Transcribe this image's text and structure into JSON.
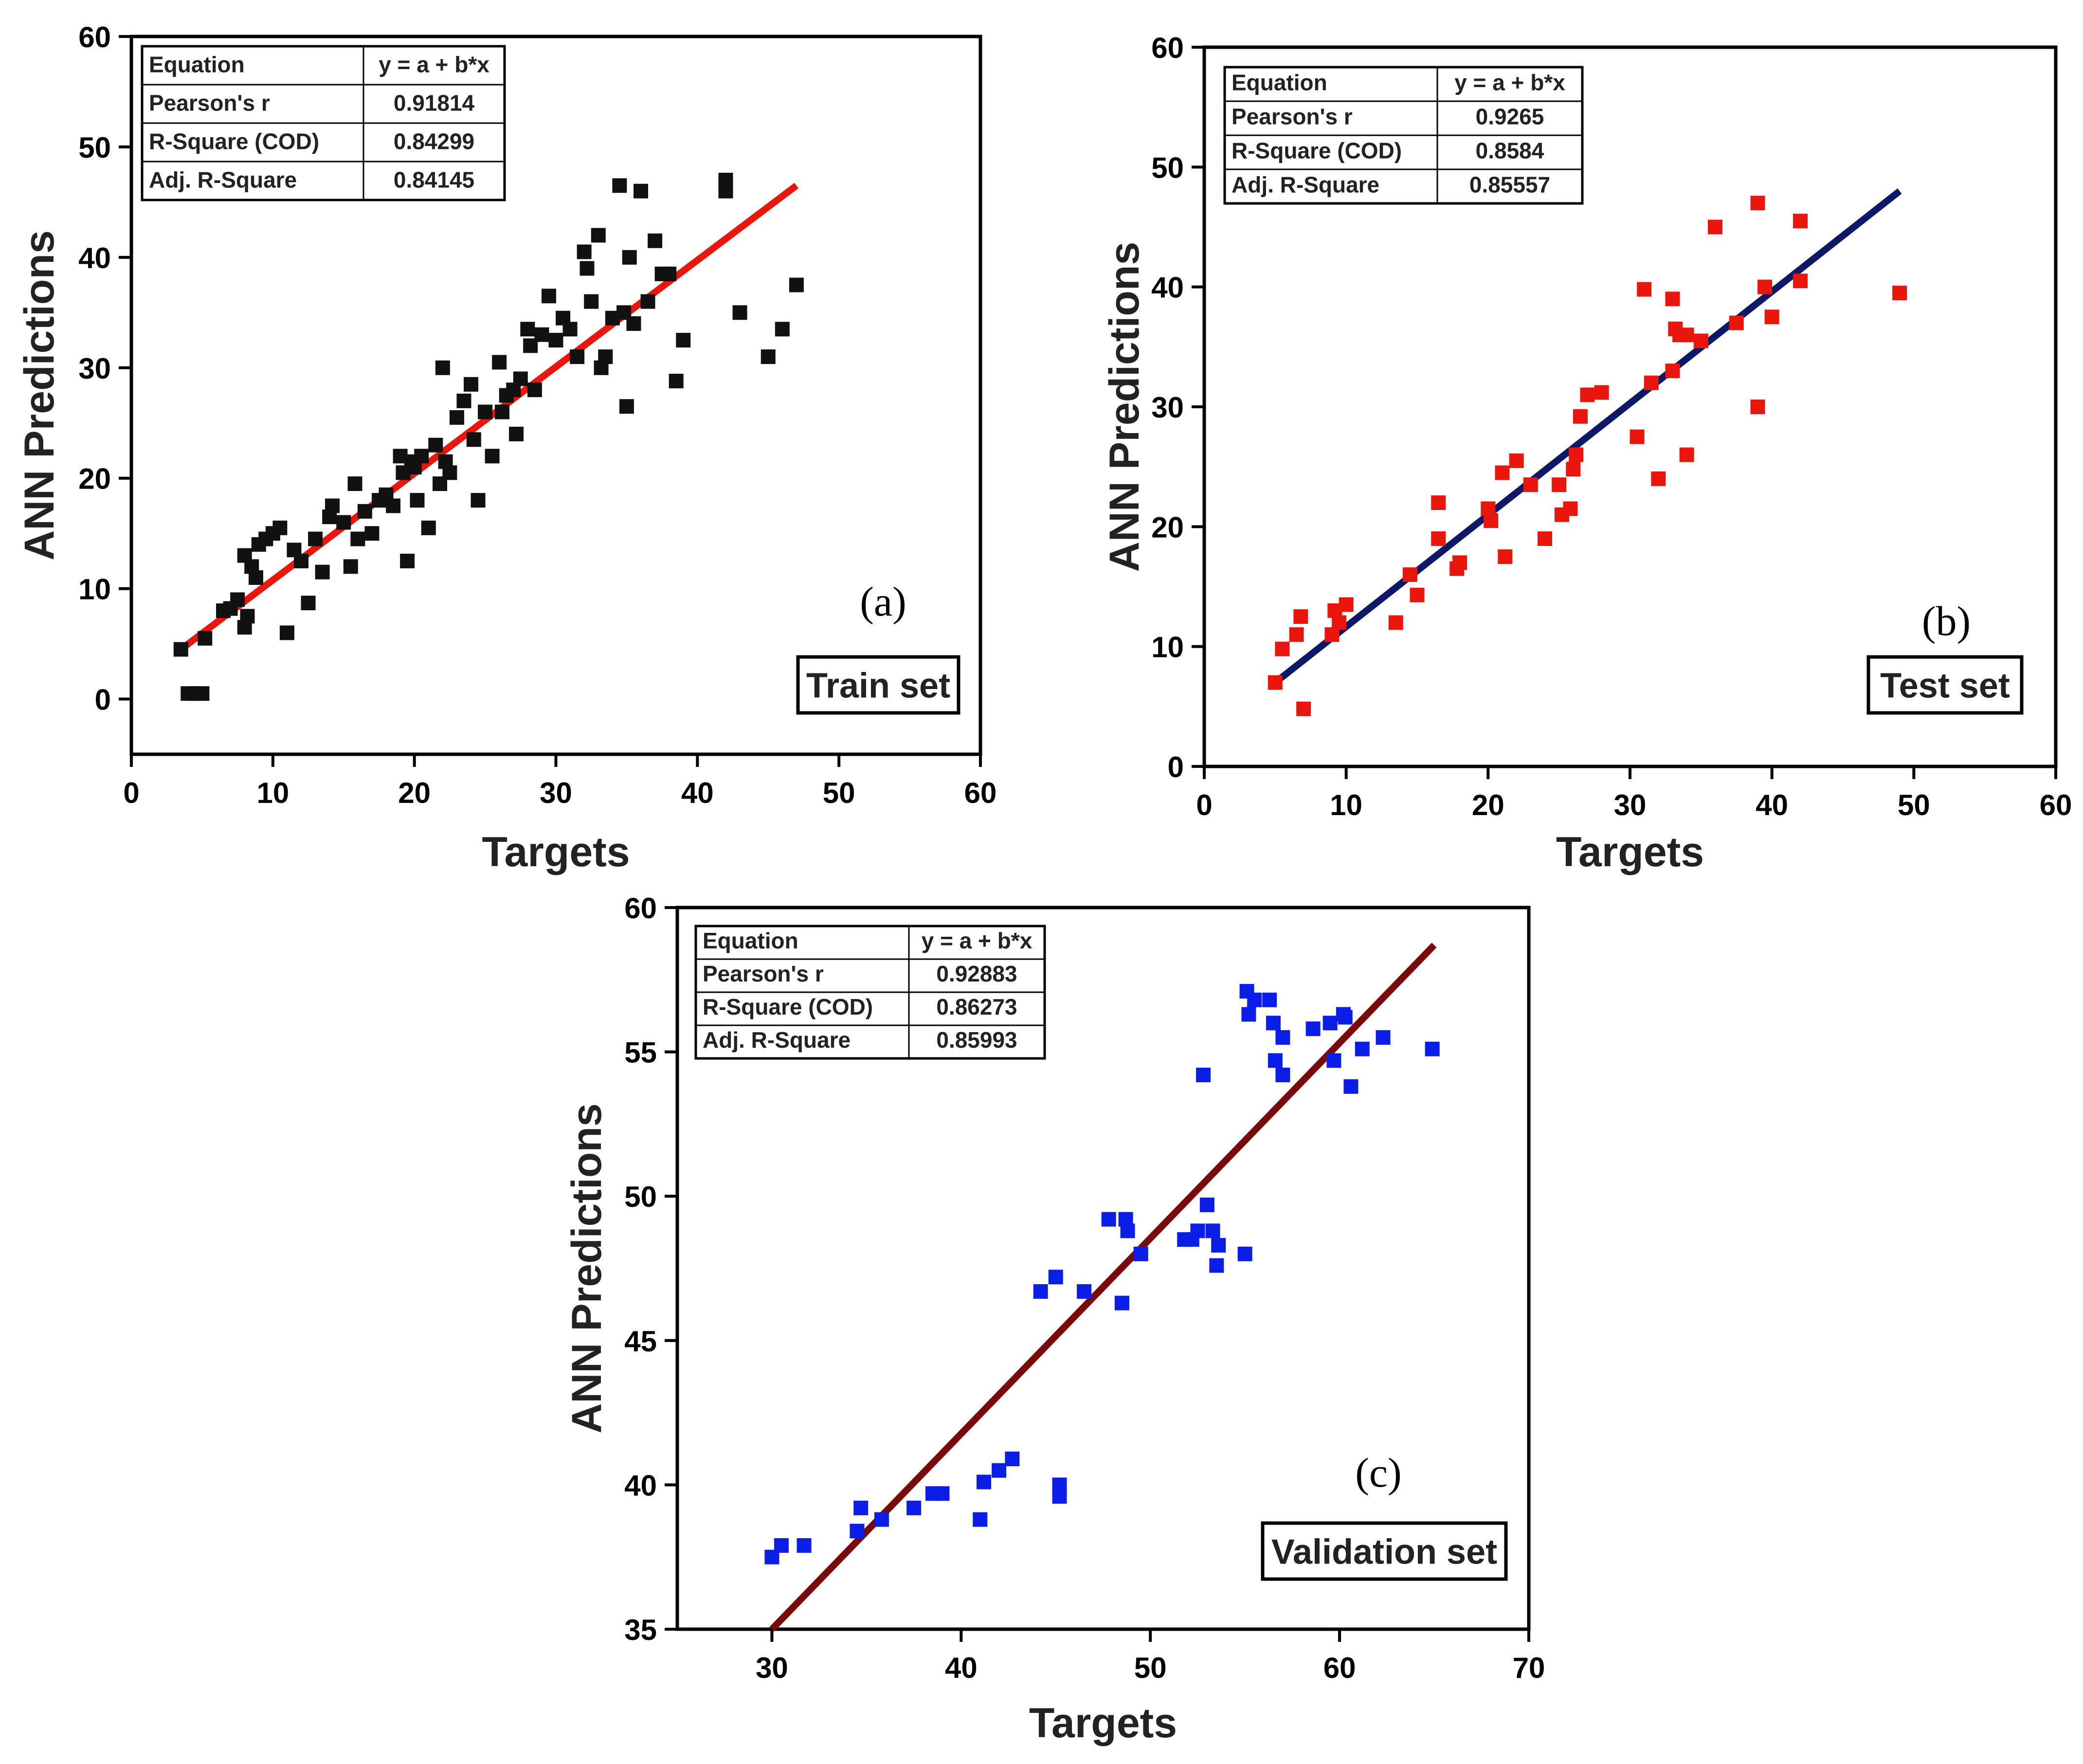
{
  "chart_data": [
    {
      "type": "scatter",
      "panel_label": "(a)",
      "set_label": "Train set",
      "xlabel": "Targets",
      "ylabel": "ANN Predictions",
      "xlim": [
        0,
        60
      ],
      "ylim": [
        -5,
        60
      ],
      "xticks": [
        0,
        10,
        20,
        30,
        40,
        50,
        60
      ],
      "yticks": [
        0,
        10,
        20,
        30,
        40,
        50,
        60
      ],
      "colors": {
        "points": "#111111",
        "fit": "#e8160c"
      },
      "stats": [
        {
          "label": "Equation",
          "value": "y = a + b*x"
        },
        {
          "label": "Pearson's r",
          "value": "0.91814"
        },
        {
          "label": "R-Square (COD)",
          "value": "0.84299"
        },
        {
          "label": "Adj. R-Square",
          "value": "0.84145"
        }
      ],
      "fit_line": {
        "x": [
          3.5,
          47
        ],
        "y": [
          4.5,
          46.5
        ]
      },
      "series": [
        {
          "name": "Train set",
          "x": [
            3.5,
            4,
            4.5,
            5,
            5.2,
            6.5,
            7,
            7.5,
            8,
            8,
            8.2,
            8.5,
            8.8,
            9,
            9.5,
            10,
            10.5,
            11,
            11.5,
            12,
            12.5,
            13,
            13.5,
            14,
            14.2,
            15,
            15.5,
            15.8,
            16,
            16.5,
            17,
            17.5,
            18,
            18.5,
            19,
            19.2,
            19.5,
            19.8,
            20,
            20.2,
            20.5,
            21,
            21.5,
            21.8,
            22,
            22.2,
            22.5,
            23,
            23.5,
            24,
            24.2,
            24.5,
            25,
            25.5,
            26,
            26.2,
            26.5,
            27,
            27.2,
            27.5,
            28,
            28.2,
            28.5,
            29,
            29.5,
            30,
            30.5,
            31,
            31.5,
            32,
            32.2,
            32.5,
            33,
            33.2,
            33.5,
            34,
            34.5,
            34.8,
            35,
            35.2,
            35.5,
            36,
            36.5,
            37,
            37.5,
            38,
            38.5,
            39,
            42,
            42,
            43,
            45,
            46,
            47
          ],
          "y": [
            4.5,
            0.5,
            0.5,
            0.5,
            5.5,
            8,
            8.2,
            9,
            6.5,
            13,
            7.5,
            12,
            11,
            14,
            14.5,
            15,
            15.5,
            6,
            13.5,
            12.5,
            8.7,
            14.5,
            11.5,
            16.5,
            17.5,
            16,
            12,
            19.5,
            14.5,
            17,
            15,
            18,
            18.5,
            17.5,
            22,
            20.5,
            12.5,
            21.5,
            21,
            18,
            22,
            15.5,
            23,
            19.5,
            30,
            21.5,
            20.5,
            25.5,
            27,
            28.5,
            23.5,
            18,
            26,
            22,
            30.5,
            26,
            27.5,
            28,
            24,
            29,
            33.5,
            32,
            28,
            33,
            36.5,
            32.5,
            34.5,
            33.5,
            31,
            40.5,
            39,
            36,
            42,
            30,
            31,
            34.5,
            46.5,
            35,
            26.5,
            40,
            34,
            46,
            36,
            41.5,
            38.5,
            38.5,
            28.8,
            32.5,
            46,
            47,
            35,
            31,
            33.5,
            37.5
          ]
        }
      ]
    },
    {
      "type": "scatter",
      "panel_label": "(b)",
      "set_label": "Test set",
      "xlabel": "Targets",
      "ylabel": "ANN Predictions",
      "xlim": [
        0,
        60
      ],
      "ylim": [
        0,
        60
      ],
      "xticks": [
        0,
        10,
        20,
        30,
        40,
        50,
        60
      ],
      "yticks": [
        0,
        10,
        20,
        30,
        40,
        50,
        60
      ],
      "colors": {
        "points": "#e8160c",
        "fit": "#0d1866"
      },
      "stats": [
        {
          "label": "Equation",
          "value": "y = a + b*x"
        },
        {
          "label": "Pearson's r",
          "value": "0.9265"
        },
        {
          "label": "R-Square (COD)",
          "value": "0.8584"
        },
        {
          "label": "Adj. R-Square",
          "value": "0.85557"
        }
      ],
      "fit_line": {
        "x": [
          5,
          49
        ],
        "y": [
          7,
          48
        ]
      },
      "series": [
        {
          "name": "Test set",
          "x": [
            5,
            5.5,
            6.5,
            6.8,
            7,
            9,
            9.2,
            9.5,
            10,
            13.5,
            14.5,
            15,
            16.5,
            16.5,
            17.8,
            18,
            20,
            20.2,
            21,
            21.2,
            22,
            23,
            24,
            25,
            25.2,
            25.8,
            26,
            26.2,
            26.5,
            27,
            28,
            30.5,
            31,
            31.5,
            32,
            33,
            33,
            33.2,
            33.5,
            34,
            34,
            35,
            36,
            37.5,
            39,
            39,
            39.5,
            40,
            42,
            42,
            49
          ],
          "y": [
            7,
            9.8,
            11,
            12.5,
            4.8,
            11,
            13,
            12,
            13.5,
            12,
            16,
            14.3,
            22,
            19,
            16.5,
            17,
            21.5,
            20.5,
            24.5,
            17.5,
            25.5,
            23.5,
            19,
            23.5,
            21,
            21.5,
            24.8,
            26,
            29.2,
            31,
            31.2,
            27.5,
            39.8,
            32,
            24,
            33,
            39,
            36.5,
            36,
            26,
            36,
            35.5,
            45,
            37,
            47,
            30,
            40,
            37.5,
            45.5,
            40.5,
            39.5
          ]
        }
      ]
    },
    {
      "type": "scatter",
      "panel_label": "(c)",
      "set_label": "Validation set",
      "xlabel": "Targets",
      "ylabel": "ANN Predictions",
      "xlim": [
        25,
        70
      ],
      "ylim": [
        35,
        60
      ],
      "xticks": [
        30,
        40,
        50,
        60,
        70
      ],
      "yticks": [
        35,
        40,
        45,
        50,
        55,
        60
      ],
      "colors": {
        "points": "#0a1ee6",
        "fit": "#7a0a0a"
      },
      "stats": [
        {
          "label": "Equation",
          "value": "y = a + b*x"
        },
        {
          "label": "Pearson's r",
          "value": "0.92883"
        },
        {
          "label": "R-Square (COD)",
          "value": "0.86273"
        },
        {
          "label": "Adj. R-Square",
          "value": "0.85993"
        }
      ],
      "fit_line": {
        "x": [
          30,
          65
        ],
        "y": [
          35,
          58.7
        ]
      },
      "series": [
        {
          "name": "Validation set",
          "x": [
            30,
            30.5,
            31.7,
            34.5,
            34.7,
            35.8,
            37.5,
            38.5,
            39,
            41,
            41.2,
            42,
            42.7,
            44.2,
            45,
            45.2,
            45.2,
            46.5,
            47.8,
            48.5,
            48.7,
            48.8,
            49.5,
            51.8,
            52.2,
            52.5,
            52.8,
            53,
            53.3,
            53.5,
            53.6,
            55,
            55.1,
            55.2,
            55.5,
            56.3,
            56.5,
            56.6,
            57,
            57,
            58.6,
            59.5,
            59.7,
            60.2,
            60.3,
            60.6,
            61.2,
            62.3,
            64.9
          ],
          "y": [
            37.5,
            37.9,
            37.9,
            38.4,
            39.2,
            38.8,
            39.2,
            39.7,
            39.7,
            38.8,
            40.1,
            40.5,
            40.9,
            46.7,
            47.2,
            39.6,
            40,
            46.7,
            49.2,
            46.3,
            49.2,
            48.8,
            48,
            48.5,
            48.5,
            48.8,
            54.2,
            49.7,
            48.8,
            47.6,
            48.3,
            48,
            57.1,
            56.3,
            56.8,
            56.8,
            56.0,
            54.7,
            55.5,
            54.2,
            55.8,
            56,
            54.7,
            56.3,
            56.2,
            53.8,
            55.1,
            55.5,
            55.1
          ]
        }
      ]
    }
  ]
}
